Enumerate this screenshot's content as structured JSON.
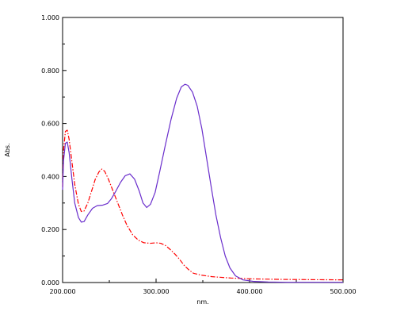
{
  "chart_data": {
    "type": "line",
    "xlabel": "nm.",
    "ylabel": "Abs.",
    "xlim": [
      200,
      500
    ],
    "ylim": [
      0,
      1
    ],
    "x_ticks": [
      200,
      300,
      400,
      500
    ],
    "x_tick_labels": [
      "200.000",
      "300.000",
      "400.000",
      "500.000"
    ],
    "y_ticks": [
      0,
      0.2,
      0.4,
      0.6,
      0.8,
      1.0
    ],
    "y_tick_labels": [
      "0.000",
      "0.200",
      "0.400",
      "0.600",
      "0.800",
      "1.000"
    ],
    "grid": false,
    "series": [
      {
        "color": "#6a2ecc",
        "style": "solid",
        "points": [
          [
            200,
            0.35
          ],
          [
            201,
            0.46
          ],
          [
            203,
            0.525
          ],
          [
            205,
            0.53
          ],
          [
            207,
            0.49
          ],
          [
            210,
            0.39
          ],
          [
            213,
            0.3
          ],
          [
            217,
            0.245
          ],
          [
            220,
            0.228
          ],
          [
            223,
            0.23
          ],
          [
            227,
            0.255
          ],
          [
            232,
            0.28
          ],
          [
            237,
            0.29
          ],
          [
            243,
            0.292
          ],
          [
            248,
            0.298
          ],
          [
            252,
            0.315
          ],
          [
            257,
            0.345
          ],
          [
            262,
            0.378
          ],
          [
            267,
            0.403
          ],
          [
            272,
            0.41
          ],
          [
            277,
            0.39
          ],
          [
            282,
            0.345
          ],
          [
            286,
            0.3
          ],
          [
            290,
            0.283
          ],
          [
            294,
            0.295
          ],
          [
            299,
            0.34
          ],
          [
            304,
            0.42
          ],
          [
            310,
            0.52
          ],
          [
            316,
            0.615
          ],
          [
            322,
            0.695
          ],
          [
            327,
            0.738
          ],
          [
            331,
            0.748
          ],
          [
            334,
            0.744
          ],
          [
            339,
            0.718
          ],
          [
            344,
            0.665
          ],
          [
            349,
            0.58
          ],
          [
            354,
            0.47
          ],
          [
            359,
            0.36
          ],
          [
            364,
            0.255
          ],
          [
            369,
            0.17
          ],
          [
            374,
            0.1
          ],
          [
            379,
            0.055
          ],
          [
            385,
            0.025
          ],
          [
            393,
            0.01
          ],
          [
            405,
            0.004
          ],
          [
            420,
            0.002
          ],
          [
            440,
            0.001
          ],
          [
            470,
            0.001
          ],
          [
            500,
            0.001
          ]
        ]
      },
      {
        "color": "#ff0000",
        "style": "dashdot",
        "points": [
          [
            200,
            0.36
          ],
          [
            201,
            0.5
          ],
          [
            203,
            0.57
          ],
          [
            205,
            0.575
          ],
          [
            207,
            0.54
          ],
          [
            210,
            0.455
          ],
          [
            213,
            0.37
          ],
          [
            217,
            0.295
          ],
          [
            220,
            0.268
          ],
          [
            223,
            0.27
          ],
          [
            227,
            0.3
          ],
          [
            231,
            0.345
          ],
          [
            235,
            0.39
          ],
          [
            239,
            0.418
          ],
          [
            242,
            0.428
          ],
          [
            245,
            0.42
          ],
          [
            249,
            0.39
          ],
          [
            254,
            0.345
          ],
          [
            259,
            0.3
          ],
          [
            264,
            0.255
          ],
          [
            269,
            0.215
          ],
          [
            275,
            0.18
          ],
          [
            281,
            0.16
          ],
          [
            287,
            0.15
          ],
          [
            294,
            0.148
          ],
          [
            300,
            0.15
          ],
          [
            305,
            0.148
          ],
          [
            310,
            0.14
          ],
          [
            315,
            0.125
          ],
          [
            320,
            0.108
          ],
          [
            325,
            0.088
          ],
          [
            330,
            0.065
          ],
          [
            335,
            0.048
          ],
          [
            340,
            0.035
          ],
          [
            348,
            0.028
          ],
          [
            360,
            0.022
          ],
          [
            380,
            0.017
          ],
          [
            400,
            0.014
          ],
          [
            430,
            0.012
          ],
          [
            460,
            0.011
          ],
          [
            500,
            0.01
          ]
        ]
      }
    ]
  }
}
